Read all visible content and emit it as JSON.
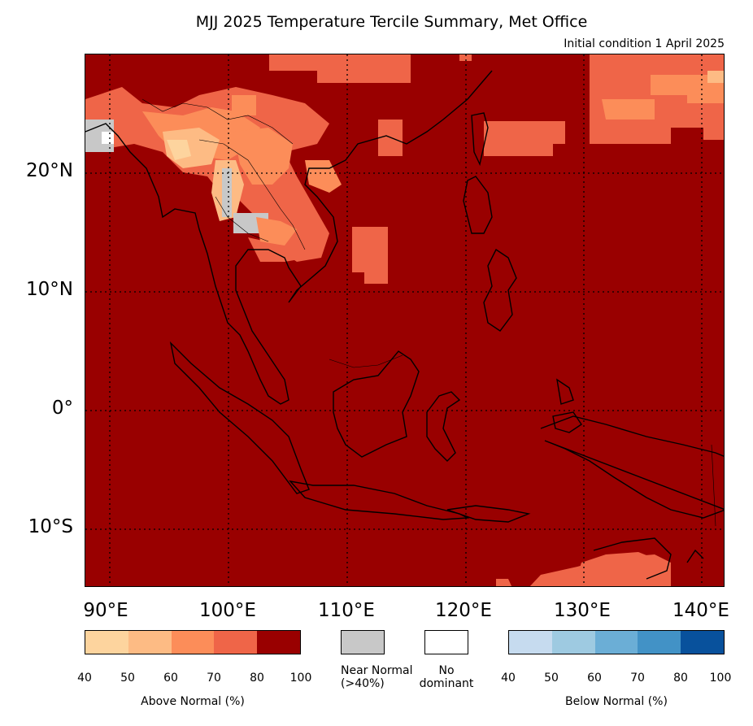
{
  "title": "MJJ 2025 Temperature Tercile Summary, Met Office",
  "subtitle": "Initial condition 1 April 2025",
  "map": {
    "lat_labels": [
      "20°N",
      "10°N",
      "0°",
      "10°S"
    ],
    "lon_labels": [
      "90°E",
      "100°E",
      "110°E",
      "120°E",
      "130°E",
      "140°E"
    ],
    "region": "Southeast Asia",
    "dominant_category": "Above Normal 80-100%"
  },
  "legend": {
    "above": {
      "caption": "Above Normal (%)",
      "ticks": [
        "40",
        "50",
        "60",
        "70",
        "80",
        "100"
      ],
      "colors": [
        "#fdd49e",
        "#fdbb84",
        "#fc8d59",
        "#ef6548",
        "#990000"
      ]
    },
    "near": {
      "caption_line1": "Near Normal",
      "caption_line2": "(>40%)",
      "color": "#c8c8c8"
    },
    "none": {
      "caption_line1": "No",
      "caption_line2": "dominant",
      "color": "#ffffff"
    },
    "below": {
      "caption": "Below Normal (%)",
      "ticks": [
        "40",
        "50",
        "60",
        "70",
        "80",
        "100"
      ],
      "colors": [
        "#c6dbef",
        "#9ecae1",
        "#6baed6",
        "#4292c6",
        "#08519c"
      ]
    }
  }
}
